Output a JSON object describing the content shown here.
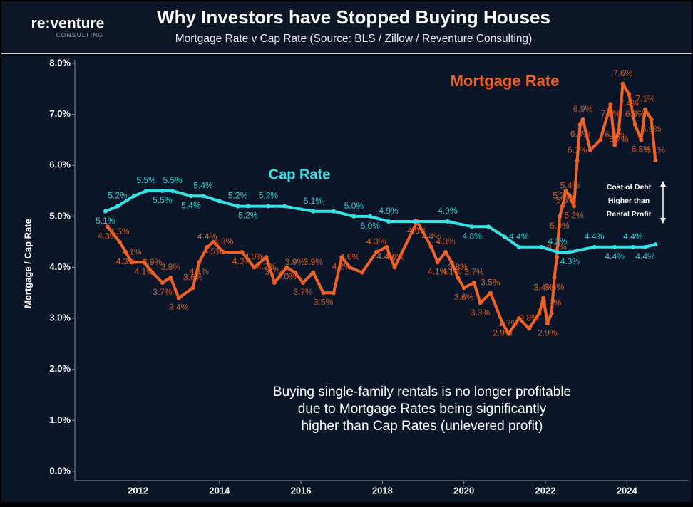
{
  "header": {
    "logo": "re:venture",
    "tagline": "CONSULTING"
  },
  "chart_data": {
    "type": "line",
    "title": "Why Investors have Stopped Buying Houses",
    "subtitle": "Mortgage Rate v Cap Rate (Source: BLS / Zillow / Reventure Consulting)",
    "y_label": "Mortgage / Cap Rate",
    "xlim": [
      2010.45,
      2025.5
    ],
    "xticks": [
      2012,
      2014,
      2016,
      2018,
      2020,
      2022,
      2024
    ],
    "ylim": [
      0,
      8
    ],
    "yticks": [
      {
        "value": 0,
        "label": "0.0%"
      },
      {
        "value": 1,
        "label": "1.0%"
      },
      {
        "value": 2,
        "label": "2.0%"
      },
      {
        "value": 3,
        "label": "3.0%"
      },
      {
        "value": 4,
        "label": "4.0%"
      },
      {
        "value": 5,
        "label": "5.0%"
      },
      {
        "value": 6,
        "label": "6.0%"
      },
      {
        "value": 7,
        "label": "7.0%"
      },
      {
        "value": 8,
        "label": "8.0%"
      }
    ],
    "series": [
      {
        "name": "Mortgage Rate",
        "color": "#f26124",
        "x": [
          2011.25,
          2011.55,
          2011.7,
          2011.85,
          2012.15,
          2012.35,
          2012.6,
          2012.8,
          2013.0,
          2013.35,
          2013.5,
          2013.7,
          2013.85,
          2014.1,
          2014.55,
          2014.85,
          2015.15,
          2015.35,
          2015.65,
          2015.85,
          2016.05,
          2016.3,
          2016.55,
          2016.8,
          2017.0,
          2017.2,
          2017.5,
          2017.85,
          2018.1,
          2018.3,
          2018.85,
          2019.2,
          2019.35,
          2019.55,
          2019.7,
          2019.85,
          2020.0,
          2020.25,
          2020.4,
          2020.65,
          2020.95,
          2021.1,
          2021.35,
          2021.6,
          2021.85,
          2021.95,
          2022.05,
          2022.15,
          2022.22,
          2022.28,
          2022.35,
          2022.42,
          2022.5,
          2022.6,
          2022.7,
          2022.78,
          2022.85,
          2022.92,
          2023.1,
          2023.35,
          2023.6,
          2023.7,
          2023.8,
          2023.9,
          2024.05,
          2024.2,
          2024.35,
          2024.45,
          2024.6,
          2024.7
        ],
        "values": [
          4.8,
          4.5,
          4.3,
          4.1,
          4.1,
          3.9,
          3.7,
          3.8,
          3.4,
          3.6,
          4.1,
          4.4,
          4.5,
          4.3,
          4.3,
          4.0,
          4.2,
          3.7,
          4.0,
          3.9,
          3.7,
          3.9,
          3.5,
          3.5,
          4.2,
          4.0,
          3.9,
          4.3,
          4.4,
          4.0,
          4.9,
          4.4,
          4.1,
          4.3,
          4.1,
          3.8,
          3.6,
          3.7,
          3.3,
          3.5,
          2.9,
          2.7,
          3.0,
          2.8,
          3.1,
          3.4,
          2.9,
          3.1,
          3.8,
          4.2,
          5.0,
          5.2,
          5.5,
          5.4,
          5.2,
          6.1,
          6.8,
          6.9,
          6.3,
          6.5,
          7.2,
          6.4,
          6.7,
          7.6,
          7.4,
          6.8,
          6.5,
          7.1,
          6.9,
          6.1
        ],
        "value_labels": [
          "4.8%",
          "4.5%",
          "4.3%",
          "4.1%",
          "4.1%",
          "3.9%",
          "3.7%",
          "3.8%",
          "3.4%",
          "3.6%",
          "4.1%",
          "4.4%",
          "4.5%",
          "4.3%",
          "4.3%",
          "4.0%",
          "4.2%",
          "3.7%",
          "4.0%",
          "3.9%",
          "3.7%",
          "3.9%",
          "3.5%",
          null,
          "4.2%",
          "4.0%",
          null,
          "4.3%",
          "4.4%",
          "4.0%",
          "4.9%",
          "4.4%",
          "4.1%",
          "4.3%",
          "4.1%",
          "3.8%",
          "3.6%",
          "3.7%",
          "3.3%",
          "3.5%",
          "2.9%",
          "2.7%",
          null,
          "2.8%",
          null,
          "3.4%",
          "2.9%",
          "3.1%",
          "3.8%",
          "4.2%",
          "5.0%",
          "5.2%",
          "5.5%",
          "5.4%",
          "5.2%",
          "6.1%",
          "6.8%",
          "6.9%",
          null,
          null,
          "7.2%",
          "6.4%",
          "6.7%",
          "7.6%",
          "7.4%",
          "6.8%",
          "6.5%",
          "7.1%",
          "6.9%",
          "6.1%"
        ]
      },
      {
        "name": "Cap Rate",
        "color": "#33e3e6",
        "x": [
          2011.2,
          2011.5,
          2011.9,
          2012.2,
          2012.6,
          2012.85,
          2013.3,
          2013.6,
          2014.0,
          2014.45,
          2014.7,
          2015.2,
          2015.6,
          2016.3,
          2016.8,
          2017.3,
          2017.7,
          2018.15,
          2018.8,
          2019.6,
          2020.2,
          2020.6,
          2021.0,
          2021.35,
          2021.9,
          2022.3,
          2022.6,
          2023.2,
          2023.7,
          2024.15,
          2024.45,
          2024.7
        ],
        "values": [
          5.1,
          5.2,
          5.4,
          5.5,
          5.5,
          5.5,
          5.4,
          5.4,
          5.3,
          5.2,
          5.2,
          5.2,
          5.2,
          5.1,
          5.1,
          5.0,
          5.0,
          4.9,
          4.9,
          4.9,
          4.8,
          4.8,
          4.6,
          4.4,
          4.4,
          4.3,
          4.3,
          4.4,
          4.4,
          4.4,
          4.4,
          4.45
        ],
        "value_labels": [
          "5.1%",
          "5.2%",
          null,
          "5.5%",
          "5.5%",
          "5.5%",
          "5.4%",
          "5.4%",
          null,
          "5.2%",
          "5.2%",
          "5.2%",
          null,
          "5.1%",
          null,
          "5.0%",
          "5.0%",
          "4.9%",
          null,
          "4.9%",
          "4.8%",
          null,
          null,
          "4.4%",
          null,
          "4.3%",
          "4.3%",
          "4.4%",
          "4.4%",
          "4.4%",
          "4.4%",
          null
        ]
      }
    ],
    "annotations": [
      {
        "lines": [
          "Cost of Debt",
          "Higher than",
          "Rental Profit"
        ]
      },
      {
        "lines": [
          "Buying single-family rentals is no longer profitable",
          "due to Mortgage Rates being significantly",
          "higher than Cap Rates (unlevered profit)"
        ]
      }
    ]
  }
}
